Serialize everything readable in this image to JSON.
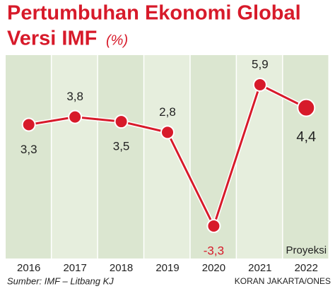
{
  "chart_data": {
    "type": "line",
    "title": "Pertumbuhan Ekonomi Global",
    "subtitle": "Versi IMF",
    "unit": "(%)",
    "categories": [
      "2016",
      "2017",
      "2018",
      "2019",
      "2020",
      "2021",
      "2022"
    ],
    "values": [
      3.3,
      3.8,
      3.5,
      2.8,
      -3.3,
      5.9,
      4.4
    ],
    "value_labels": [
      "3,3",
      "3,8",
      "3,5",
      "2,8",
      "-3,3",
      "5,9",
      "4,4"
    ],
    "color": "#d71a2a",
    "annotation": "Proyeksi",
    "source": "Sumber: IMF – Litbang KJ",
    "credit": "KORAN JAKARTA/ONES"
  }
}
